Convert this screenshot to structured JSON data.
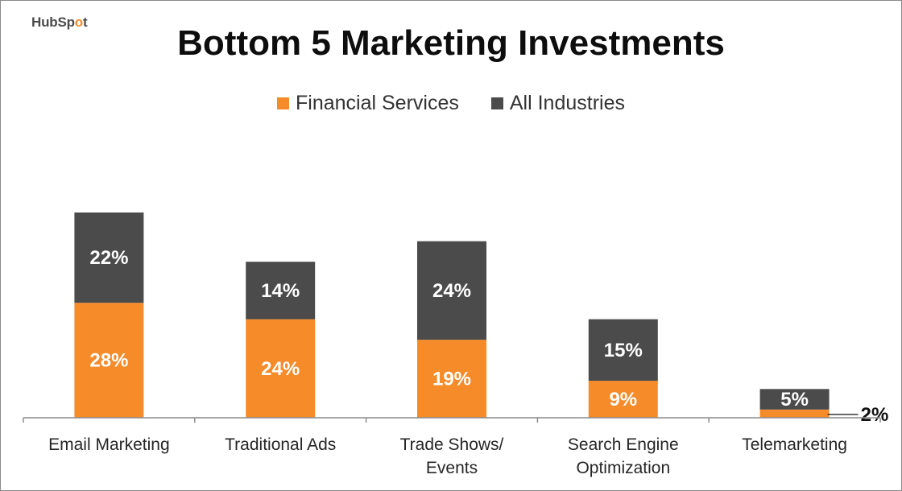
{
  "logo": {
    "brand": "HubSpot"
  },
  "colors": {
    "financial": "#f68b2a",
    "all": "#4b4b4b"
  },
  "chart_data": {
    "type": "bar",
    "stacked": true,
    "title": "Bottom 5 Marketing Investments",
    "categories": [
      [
        "Email Marketing"
      ],
      [
        "Traditional Ads"
      ],
      [
        "Trade Shows/",
        "Events"
      ],
      [
        "Search Engine",
        "Optimization"
      ],
      [
        "Telemarketing"
      ]
    ],
    "series": [
      {
        "name": "Financial Services",
        "values": [
          28,
          24,
          19,
          9,
          2
        ],
        "labels": [
          "28%",
          "24%",
          "19%",
          "9%",
          "2%"
        ]
      },
      {
        "name": "All Industries",
        "values": [
          22,
          14,
          24,
          15,
          5
        ],
        "labels": [
          "22%",
          "14%",
          "24%",
          "15%",
          "5%"
        ]
      }
    ],
    "legend": "top-center",
    "grid": false,
    "ylim": [
      0,
      56
    ]
  }
}
